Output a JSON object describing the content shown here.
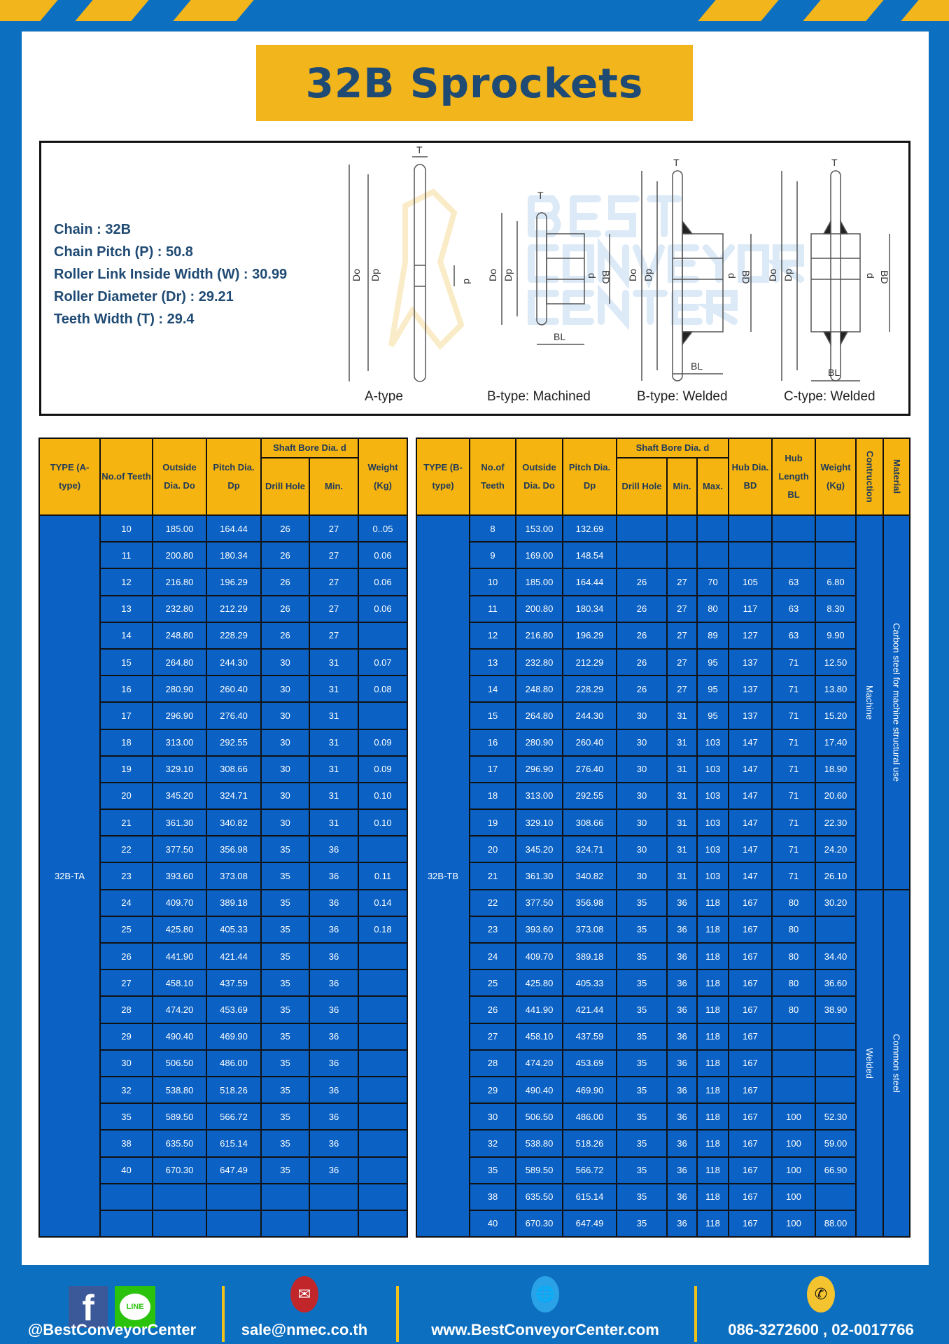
{
  "title": "32B Sprockets",
  "specs": [
    "Chain  : 32B",
    "Chain Pitch (P)  :  50.8",
    "Roller Link Inside Width (W)  :  30.99",
    "Roller Diameter (Dr)  : 29.21",
    "Teeth Width (T)  :  29.4"
  ],
  "diagram": {
    "captions": [
      "A-type",
      "B-type: Machined",
      "B-type: Welded",
      "C-type: Welded"
    ],
    "labels": {
      "t": "T",
      "do": "Do",
      "dp": "Dp",
      "d": "d",
      "bd": "BD",
      "bl": "BL"
    },
    "watermark": "BEST CONVEYOR CENTER"
  },
  "colors": {
    "background": "#0d6fc0",
    "accent": "#f2b51c",
    "cell": "#0b62c4",
    "header": "#f5b40f",
    "title_text": "#1f4a73"
  },
  "table_a": {
    "headers": {
      "type": "TYPE (A-type)",
      "teeth": "No.of Teeth",
      "do": "Outside Dia. Do",
      "dp": "Pitch Dia. Dp",
      "bore": "Shaft Bore Dia. d",
      "drill": "Drill Hole",
      "min": "Min.",
      "weight": "Weight (Kg)"
    },
    "type_label": "32B-TA",
    "rows": [
      [
        "10",
        "185.00",
        "164.44",
        "26",
        "27",
        "0..05"
      ],
      [
        "11",
        "200.80",
        "180.34",
        "26",
        "27",
        "0.06"
      ],
      [
        "12",
        "216.80",
        "196.29",
        "26",
        "27",
        "0.06"
      ],
      [
        "13",
        "232.80",
        "212.29",
        "26",
        "27",
        "0.06"
      ],
      [
        "14",
        "248.80",
        "228.29",
        "26",
        "27",
        ""
      ],
      [
        "15",
        "264.80",
        "244.30",
        "30",
        "31",
        "0.07"
      ],
      [
        "16",
        "280.90",
        "260.40",
        "30",
        "31",
        "0.08"
      ],
      [
        "17",
        "296.90",
        "276.40",
        "30",
        "31",
        ""
      ],
      [
        "18",
        "313.00",
        "292.55",
        "30",
        "31",
        "0.09"
      ],
      [
        "19",
        "329.10",
        "308.66",
        "30",
        "31",
        "0.09"
      ],
      [
        "20",
        "345.20",
        "324.71",
        "30",
        "31",
        "0.10"
      ],
      [
        "21",
        "361.30",
        "340.82",
        "30",
        "31",
        "0.10"
      ],
      [
        "22",
        "377.50",
        "356.98",
        "35",
        "36",
        ""
      ],
      [
        "23",
        "393.60",
        "373.08",
        "35",
        "36",
        "0.11"
      ],
      [
        "24",
        "409.70",
        "389.18",
        "35",
        "36",
        "0.14"
      ],
      [
        "25",
        "425.80",
        "405.33",
        "35",
        "36",
        "0.18"
      ],
      [
        "26",
        "441.90",
        "421.44",
        "35",
        "36",
        ""
      ],
      [
        "27",
        "458.10",
        "437.59",
        "35",
        "36",
        ""
      ],
      [
        "28",
        "474.20",
        "453.69",
        "35",
        "36",
        ""
      ],
      [
        "29",
        "490.40",
        "469.90",
        "35",
        "36",
        ""
      ],
      [
        "30",
        "506.50",
        "486.00",
        "35",
        "36",
        ""
      ],
      [
        "32",
        "538.80",
        "518.26",
        "35",
        "36",
        ""
      ],
      [
        "35",
        "589.50",
        "566.72",
        "35",
        "36",
        ""
      ],
      [
        "38",
        "635.50",
        "615.14",
        "35",
        "36",
        ""
      ],
      [
        "40",
        "670.30",
        "647.49",
        "35",
        "36",
        ""
      ],
      [
        "",
        "",
        "",
        "",
        "",
        ""
      ],
      [
        "",
        "",
        "",
        "",
        "",
        ""
      ]
    ]
  },
  "table_b": {
    "headers": {
      "type": "TYPE (B-type)",
      "teeth": "No.of Teeth",
      "do": "Outside Dia. Do",
      "dp": "Pitch Dia. Dp",
      "bore": "Shaft Bore Dia. d",
      "drill": "Drill Hole",
      "min": "Min.",
      "max": "Max.",
      "bd": "Hub Dia. BD",
      "bl": "Hub Length BL",
      "weight": "Weight (Kg)",
      "construction": "Contruction",
      "material": "Material"
    },
    "type_label": "32B-TB",
    "construction": [
      {
        "label": "Machine",
        "rows": 14
      },
      {
        "label": "Welded",
        "rows": 13
      }
    ],
    "material": [
      {
        "label": "Carbon steel for machine structural use",
        "rows": 14
      },
      {
        "label": "Common steel",
        "rows": 13
      }
    ],
    "rows": [
      [
        "8",
        "153.00",
        "132.69",
        "",
        "",
        "",
        "",
        "",
        ""
      ],
      [
        "9",
        "169.00",
        "148.54",
        "",
        "",
        "",
        "",
        "",
        ""
      ],
      [
        "10",
        "185.00",
        "164.44",
        "26",
        "27",
        "70",
        "105",
        "63",
        "6.80"
      ],
      [
        "11",
        "200.80",
        "180.34",
        "26",
        "27",
        "80",
        "117",
        "63",
        "8.30"
      ],
      [
        "12",
        "216.80",
        "196.29",
        "26",
        "27",
        "89",
        "127",
        "63",
        "9.90"
      ],
      [
        "13",
        "232.80",
        "212.29",
        "26",
        "27",
        "95",
        "137",
        "71",
        "12.50"
      ],
      [
        "14",
        "248.80",
        "228.29",
        "26",
        "27",
        "95",
        "137",
        "71",
        "13.80"
      ],
      [
        "15",
        "264.80",
        "244.30",
        "30",
        "31",
        "95",
        "137",
        "71",
        "15.20"
      ],
      [
        "16",
        "280.90",
        "260.40",
        "30",
        "31",
        "103",
        "147",
        "71",
        "17.40"
      ],
      [
        "17",
        "296.90",
        "276.40",
        "30",
        "31",
        "103",
        "147",
        "71",
        "18.90"
      ],
      [
        "18",
        "313.00",
        "292.55",
        "30",
        "31",
        "103",
        "147",
        "71",
        "20.60"
      ],
      [
        "19",
        "329.10",
        "308.66",
        "30",
        "31",
        "103",
        "147",
        "71",
        "22.30"
      ],
      [
        "20",
        "345.20",
        "324.71",
        "30",
        "31",
        "103",
        "147",
        "71",
        "24.20"
      ],
      [
        "21",
        "361.30",
        "340.82",
        "30",
        "31",
        "103",
        "147",
        "71",
        "26.10"
      ],
      [
        "22",
        "377.50",
        "356.98",
        "35",
        "36",
        "118",
        "167",
        "80",
        "30.20"
      ],
      [
        "23",
        "393.60",
        "373.08",
        "35",
        "36",
        "118",
        "167",
        "80",
        ""
      ],
      [
        "24",
        "409.70",
        "389.18",
        "35",
        "36",
        "118",
        "167",
        "80",
        "34.40"
      ],
      [
        "25",
        "425.80",
        "405.33",
        "35",
        "36",
        "118",
        "167",
        "80",
        "36.60"
      ],
      [
        "26",
        "441.90",
        "421.44",
        "35",
        "36",
        "118",
        "167",
        "80",
        "38.90"
      ],
      [
        "27",
        "458.10",
        "437.59",
        "35",
        "36",
        "118",
        "167",
        "",
        ""
      ],
      [
        "28",
        "474.20",
        "453.69",
        "35",
        "36",
        "118",
        "167",
        "",
        ""
      ],
      [
        "29",
        "490.40",
        "469.90",
        "35",
        "36",
        "118",
        "167",
        "",
        ""
      ],
      [
        "30",
        "506.50",
        "486.00",
        "35",
        "36",
        "118",
        "167",
        "100",
        "52.30"
      ],
      [
        "32",
        "538.80",
        "518.26",
        "35",
        "36",
        "118",
        "167",
        "100",
        "59.00"
      ],
      [
        "35",
        "589.50",
        "566.72",
        "35",
        "36",
        "118",
        "167",
        "100",
        "66.90"
      ],
      [
        "38",
        "635.50",
        "615.14",
        "35",
        "36",
        "118",
        "167",
        "100",
        ""
      ],
      [
        "40",
        "670.30",
        "647.49",
        "35",
        "36",
        "118",
        "167",
        "100",
        "88.00"
      ]
    ]
  },
  "footer": {
    "social": "@BestConveyorCenter",
    "facebook_icon": "f",
    "line_icon": "LINE",
    "email": "sale@nmec.co.th",
    "website": "www.BestConveyorCenter.com",
    "phone": "086-3272600 , 02-0017766"
  }
}
